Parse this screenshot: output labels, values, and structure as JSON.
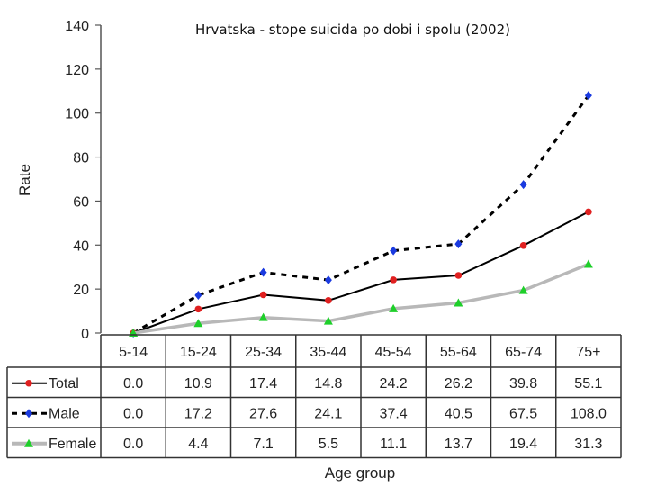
{
  "chart_data": {
    "type": "line",
    "title": "Hrvatska - stope suicida po dobi i spolu (2002)",
    "xlabel": "Age group",
    "ylabel": "Rate",
    "ylim": [
      0,
      140
    ],
    "yticks": [
      0,
      20,
      40,
      60,
      80,
      100,
      120,
      140
    ],
    "grid": false,
    "legend": "table-left",
    "categories": [
      "5-14",
      "15-24",
      "25-34",
      "35-44",
      "45-54",
      "55-64",
      "65-74",
      "75+"
    ],
    "series": [
      {
        "name": "Total",
        "color": "#000000",
        "marker_color": "#e02020",
        "dash": "solid",
        "values": [
          0.0,
          10.9,
          17.4,
          14.8,
          24.2,
          26.2,
          39.8,
          55.1
        ],
        "labels": [
          "0.0",
          "10.9",
          "17.4",
          "14.8",
          "24.2",
          "26.2",
          "39.8",
          "55.1"
        ]
      },
      {
        "name": "Male",
        "color": "#000000",
        "marker_color": "#1a3ae0",
        "dash": "dashed",
        "values": [
          0.0,
          17.2,
          27.6,
          24.1,
          37.4,
          40.5,
          67.5,
          108.0
        ],
        "labels": [
          "0.0",
          "17.2",
          "27.6",
          "24.1",
          "37.4",
          "40.5",
          "67.5",
          "108.0"
        ]
      },
      {
        "name": "Female",
        "color": "#b8b8b8",
        "marker_color": "#1ecf2a",
        "dash": "solid",
        "values": [
          0.0,
          4.4,
          7.1,
          5.5,
          11.1,
          13.7,
          19.4,
          31.3
        ],
        "labels": [
          "0.0",
          "4.4",
          "7.1",
          "5.5",
          "11.1",
          "13.7",
          "19.4",
          "31.3"
        ]
      }
    ]
  }
}
